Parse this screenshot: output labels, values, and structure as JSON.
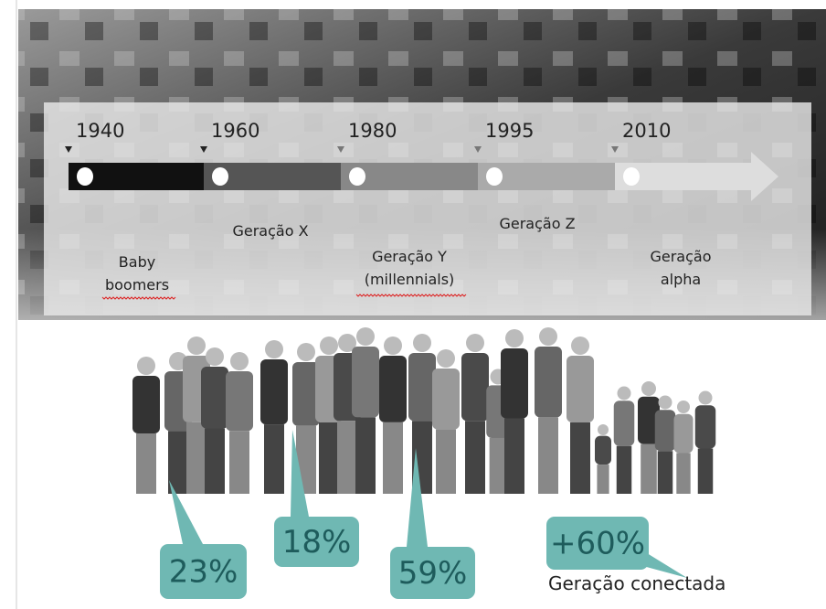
{
  "timeline": {
    "items": [
      {
        "year": "1940",
        "label": "Baby boomers"
      },
      {
        "year": "1960",
        "label": "Geração X"
      },
      {
        "year": "1980",
        "label": "Geração Y (millennials)"
      },
      {
        "year": "1995",
        "label": "Geração Z"
      },
      {
        "year": "2010",
        "label": "Geração alpha"
      }
    ]
  },
  "callouts": [
    "23%",
    "18%",
    "59%",
    "+60%"
  ],
  "caption": "Geração conectada"
}
